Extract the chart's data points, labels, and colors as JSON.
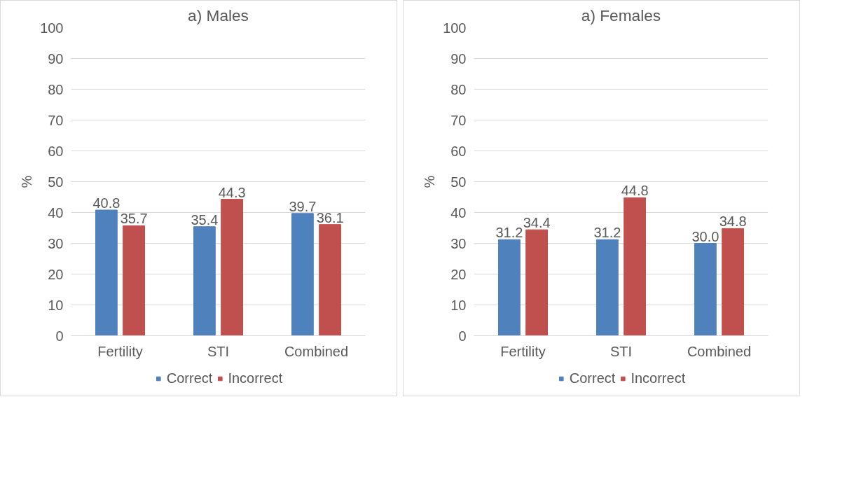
{
  "chart_data": [
    {
      "type": "bar",
      "title": "a) Males",
      "ylabel": "%",
      "categories": [
        "Fertility",
        "STI",
        "Combined"
      ],
      "ylim": [
        0,
        100
      ],
      "yticks": [
        0,
        10,
        20,
        30,
        40,
        50,
        60,
        70,
        80,
        90,
        100
      ],
      "grid": "y",
      "legend": "bottom",
      "series": [
        {
          "name": "Correct",
          "color": "#4f81bd",
          "values": [
            40.8,
            35.4,
            39.7
          ],
          "value_labels": [
            "40.8",
            "35.4",
            "39.7"
          ]
        },
        {
          "name": "Incorrect",
          "color": "#c0504d",
          "values": [
            35.7,
            44.3,
            36.1
          ],
          "value_labels": [
            "35.7",
            "44.3",
            "36.1"
          ]
        }
      ]
    },
    {
      "type": "bar",
      "title": "a) Females",
      "ylabel": "%",
      "categories": [
        "Fertility",
        "STI",
        "Combined"
      ],
      "ylim": [
        0,
        100
      ],
      "yticks": [
        0,
        10,
        20,
        30,
        40,
        50,
        60,
        70,
        80,
        90,
        100
      ],
      "grid": "y",
      "legend": "bottom",
      "series": [
        {
          "name": "Correct",
          "color": "#4f81bd",
          "values": [
            31.2,
            31.2,
            30.0
          ],
          "value_labels": [
            "31.2",
            "31.2",
            "30.0"
          ]
        },
        {
          "name": "Incorrect",
          "color": "#c0504d",
          "values": [
            34.4,
            44.8,
            34.8
          ],
          "value_labels": [
            "34.4",
            "44.8",
            "34.8"
          ]
        }
      ]
    }
  ]
}
